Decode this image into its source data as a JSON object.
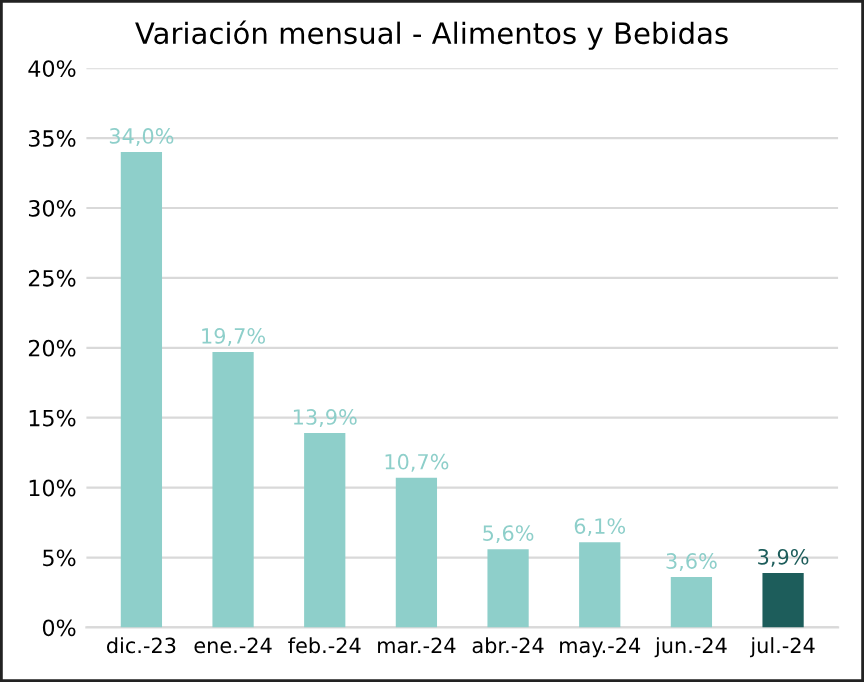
{
  "chart_data": {
    "type": "bar",
    "title": "Variación mensual - Alimentos y Bebidas",
    "categories": [
      "dic.-23",
      "ene.-24",
      "feb.-24",
      "mar.-24",
      "abr.-24",
      "may.-24",
      "jun.-24",
      "jul.-24"
    ],
    "values": [
      34.0,
      19.7,
      13.9,
      10.7,
      5.6,
      6.1,
      3.6,
      3.9
    ],
    "colors": [
      "#8ecfca",
      "#8ecfca",
      "#8ecfca",
      "#8ecfca",
      "#8ecfca",
      "#8ecfca",
      "#8ecfca",
      "#1d5d5b"
    ],
    "value_labels": [
      "34,0%",
      "19,7%",
      "13,9%",
      "10,7%",
      "5,6%",
      "6,1%",
      "3,6%",
      "3,9%"
    ],
    "ylim": [
      0,
      40
    ],
    "yticks": [
      {
        "value": 0,
        "label": "0%"
      },
      {
        "value": 5,
        "label": "5%"
      },
      {
        "value": 10,
        "label": "10%"
      },
      {
        "value": 15,
        "label": "15%"
      },
      {
        "value": 20,
        "label": "20%"
      },
      {
        "value": 25,
        "label": "25%"
      },
      {
        "value": 30,
        "label": "30%"
      },
      {
        "value": 35,
        "label": "35%"
      },
      {
        "value": 40,
        "label": "40%"
      }
    ],
    "grid": "y",
    "legend": false
  }
}
